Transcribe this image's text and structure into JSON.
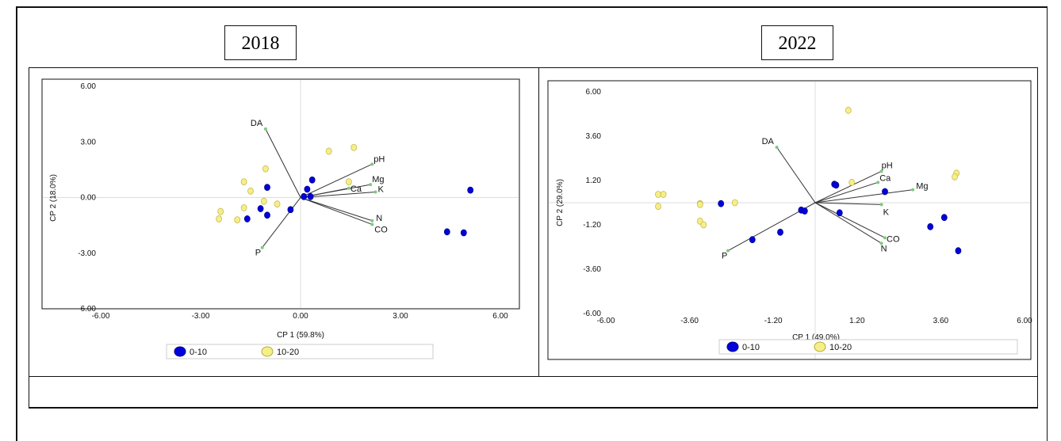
{
  "panels": [
    {
      "year": "2018"
    },
    {
      "year": "2022"
    }
  ],
  "colors": {
    "group_0_10": "#0000dd",
    "group_10_20": "#f5ef8a",
    "vector": "#333333",
    "vector_tip": "#7fc97f",
    "center_line": "#dddddd"
  },
  "chart_data": [
    {
      "type": "scatter",
      "title": "2018",
      "xlabel": "CP 1 (59.8%)",
      "ylabel": "CP 2 (18.0%)",
      "xlim": [
        -6,
        6
      ],
      "ylim": [
        -6,
        6
      ],
      "xticks": [
        "-6.00",
        "-3.00",
        "0.00",
        "3.00",
        "6.00"
      ],
      "yticks": [
        "6.00",
        "3.00",
        "0.00",
        "-3.00",
        "-6.00"
      ],
      "xtick_values": [
        -6,
        -3,
        0,
        3,
        6
      ],
      "ytick_values": [
        6,
        3,
        0,
        -3,
        -6
      ],
      "legend_position": "bottom",
      "series": [
        {
          "name": "0-10",
          "color": "#0000dd",
          "points": [
            [
              0.2,
              0.45
            ],
            [
              0.35,
              0.95
            ],
            [
              -1.0,
              0.55
            ],
            [
              0.1,
              0.05
            ],
            [
              0.3,
              0.05
            ],
            [
              -1.2,
              -0.6
            ],
            [
              -1.0,
              -0.95
            ],
            [
              -1.6,
              -1.15
            ],
            [
              -0.3,
              -0.65
            ],
            [
              5.1,
              0.4
            ],
            [
              4.4,
              -1.85
            ],
            [
              4.9,
              -1.9
            ]
          ]
        },
        {
          "name": "10-20",
          "color": "#f5ef8a",
          "points": [
            [
              0.85,
              2.5
            ],
            [
              1.6,
              2.7
            ],
            [
              -1.05,
              1.55
            ],
            [
              -1.7,
              0.85
            ],
            [
              -1.5,
              0.35
            ],
            [
              -1.1,
              -0.2
            ],
            [
              -0.7,
              -0.35
            ],
            [
              -1.7,
              -0.55
            ],
            [
              -2.4,
              -0.75
            ],
            [
              -2.45,
              -1.15
            ],
            [
              -1.9,
              -1.2
            ],
            [
              1.45,
              0.85
            ]
          ]
        }
      ],
      "vectors": [
        {
          "name": "DA",
          "x": -1.05,
          "y": 3.7
        },
        {
          "name": "pH",
          "x": 2.15,
          "y": 1.8
        },
        {
          "name": "Mg",
          "x": 2.1,
          "y": 0.7
        },
        {
          "name": "Ca",
          "x": 1.45,
          "y": 0.5
        },
        {
          "name": "K",
          "x": 2.25,
          "y": 0.3
        },
        {
          "name": "N",
          "x": 2.15,
          "y": -1.25
        },
        {
          "name": "CO",
          "x": 2.15,
          "y": -1.45
        },
        {
          "name": "P",
          "x": -1.15,
          "y": -2.7
        }
      ]
    },
    {
      "type": "scatter",
      "title": "2022",
      "xlabel": "CP 1 (49.0%)",
      "ylabel": "CP 2 (29.0%)",
      "xlim": [
        -6,
        6
      ],
      "ylim": [
        -6,
        6
      ],
      "xticks": [
        "-6.00",
        "-3.60",
        "-1.20",
        "1.20",
        "3.60",
        "6.00"
      ],
      "yticks": [
        "6.00",
        "3.60",
        "1.20",
        "-1.20",
        "-3.60",
        "-6.00"
      ],
      "xtick_values": [
        -6,
        -3.6,
        -1.2,
        1.2,
        3.6,
        6
      ],
      "ytick_values": [
        6,
        3.6,
        1.2,
        -1.2,
        -3.6,
        -6
      ],
      "legend_position": "bottom",
      "series": [
        {
          "name": "0-10",
          "color": "#0000dd",
          "points": [
            [
              0.55,
              1.0
            ],
            [
              0.6,
              0.95
            ],
            [
              2.0,
              0.6
            ],
            [
              -0.4,
              -0.4
            ],
            [
              -0.3,
              -0.45
            ],
            [
              0.7,
              -0.55
            ],
            [
              -2.7,
              -0.05
            ],
            [
              -1.0,
              -1.6
            ],
            [
              -1.8,
              -2.0
            ],
            [
              3.3,
              -1.3
            ],
            [
              3.7,
              -0.8
            ],
            [
              4.1,
              -2.6
            ]
          ]
        },
        {
          "name": "10-20",
          "color": "#f5ef8a",
          "points": [
            [
              0.95,
              5.0
            ],
            [
              1.05,
              1.1
            ],
            [
              -4.5,
              0.45
            ],
            [
              -4.35,
              0.45
            ],
            [
              -4.5,
              -0.2
            ],
            [
              -3.3,
              -0.05
            ],
            [
              -2.3,
              0.0
            ],
            [
              -3.3,
              -0.1
            ],
            [
              -3.3,
              -1.0
            ],
            [
              -3.2,
              -1.2
            ],
            [
              4.05,
              1.6
            ],
            [
              4.0,
              1.4
            ]
          ]
        }
      ],
      "vectors": [
        {
          "name": "DA",
          "x": -1.1,
          "y": 3.0
        },
        {
          "name": "pH",
          "x": 1.9,
          "y": 1.7
        },
        {
          "name": "Ca",
          "x": 1.8,
          "y": 1.1
        },
        {
          "name": "Mg",
          "x": 2.8,
          "y": 0.7
        },
        {
          "name": "K",
          "x": 1.9,
          "y": -0.1
        },
        {
          "name": "CO",
          "x": 2.0,
          "y": -1.9
        },
        {
          "name": "N",
          "x": 1.9,
          "y": -2.2
        },
        {
          "name": "P",
          "x": -2.5,
          "y": -2.6
        }
      ]
    }
  ]
}
